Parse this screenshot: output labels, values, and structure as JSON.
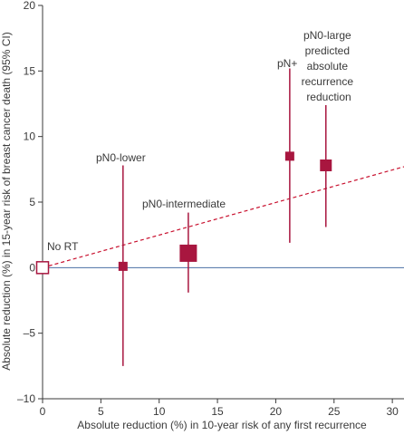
{
  "chart_data": {
    "type": "scatter",
    "xlabel": "Absolute reduction (%) in 10-year risk of any first recurrence",
    "ylabel": "Absolute reduction (%) in 15-year risk of breast cancer death (95% CI)",
    "xlim": [
      0,
      31
    ],
    "ylim": [
      -10,
      20
    ],
    "x_ticks": [
      0,
      5,
      10,
      15,
      20,
      25,
      30
    ],
    "y_ticks": [
      -10,
      -5,
      0,
      5,
      10,
      15,
      20
    ],
    "zero_line": 0,
    "trend_line": {
      "from": [
        0,
        0
      ],
      "to": [
        31,
        7.7
      ],
      "style": "dashed"
    },
    "points": [
      {
        "label": "No RT",
        "x": 0,
        "y": 0,
        "ci": null,
        "size": "medium",
        "open": true
      },
      {
        "label": "pN0-lower",
        "x": 6.9,
        "y": 0.1,
        "ci": [
          -7.5,
          7.8
        ],
        "size": "small",
        "open": false
      },
      {
        "label": "pN0-intermediate",
        "x": 12.5,
        "y": 1.1,
        "ci": [
          -1.9,
          4.2
        ],
        "size": "large",
        "open": false
      },
      {
        "label": "pN+",
        "x": 21.2,
        "y": 8.5,
        "ci": [
          1.9,
          15.2
        ],
        "size": "small",
        "open": false
      },
      {
        "label": "pN0-large predicted absolute recurrence reduction",
        "x": 24.3,
        "y": 7.8,
        "ci": [
          3.1,
          12.4
        ],
        "size": "medium",
        "open": false
      }
    ],
    "colors": {
      "marker": "#a8163f",
      "trend": "#c8102e",
      "zero_line": "#4a6fa5",
      "axis": "#3a3a3a"
    }
  }
}
